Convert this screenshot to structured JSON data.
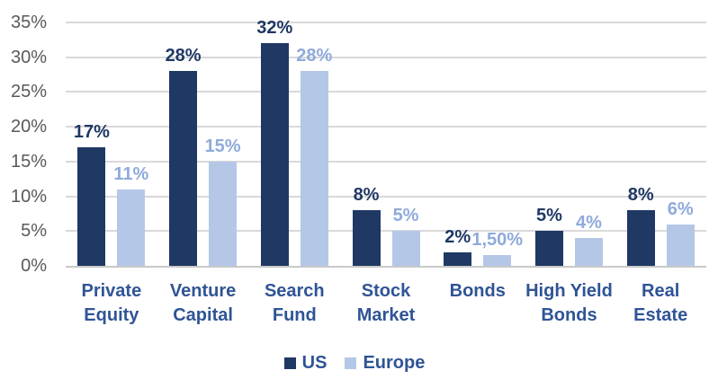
{
  "chart_data": {
    "type": "bar",
    "title": "",
    "xlabel": "",
    "ylabel": "",
    "categories": [
      "Private\nEquity",
      "Venture\nCapital",
      "Search\nFund",
      "Stock\nMarket",
      "Bonds",
      "High Yield\nBonds",
      "Real\nEstate"
    ],
    "series": [
      {
        "name": "US",
        "key": "us",
        "values": [
          17,
          28,
          32,
          8,
          2,
          5,
          8
        ],
        "labels": [
          "17%",
          "28%",
          "32%",
          "8%",
          "2%",
          "5%",
          "8%"
        ],
        "bar_color": "#1F3864",
        "label_color": "#1F3864"
      },
      {
        "name": "Europe",
        "key": "europe",
        "values": [
          11,
          15,
          28,
          5,
          1.5,
          4,
          6
        ],
        "labels": [
          "11%",
          "15%",
          "28%",
          "5%",
          "1,50%",
          "4%",
          "6%"
        ],
        "bar_color": "#B4C7E7",
        "label_color": "#8FAADC"
      }
    ],
    "y_ticks": [
      "35%",
      "30%",
      "25%",
      "20%",
      "15%",
      "10%",
      "5%",
      "0%"
    ],
    "ylim": [
      0,
      35
    ],
    "grid": true,
    "legend_position": "bottom"
  },
  "colors": {
    "background": "#FFFFFF",
    "gridline": "#D9D9D9",
    "axis_line": "#C9C9C9",
    "tick_label": "#595959",
    "category_label": "#2F5496",
    "legend_label": "#2F5496"
  }
}
